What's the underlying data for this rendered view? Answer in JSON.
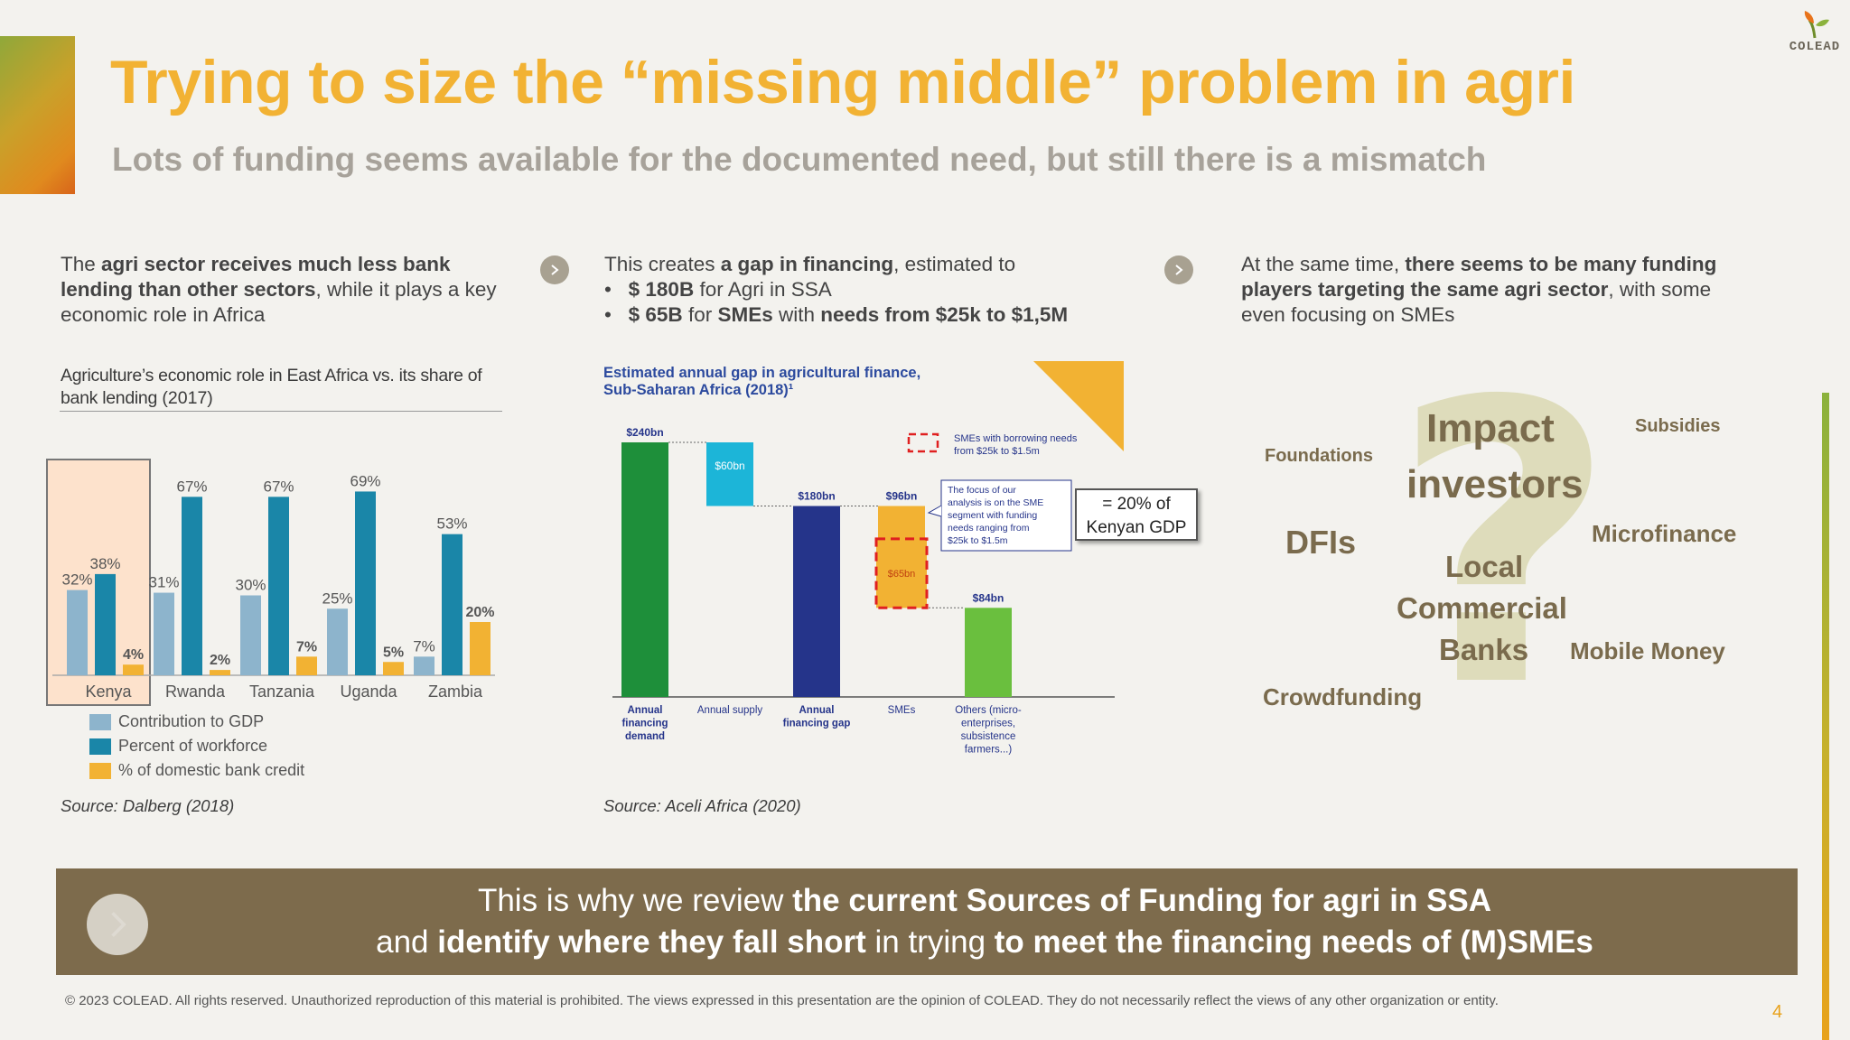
{
  "header": {
    "title": "Trying to size the “missing middle” problem in agri",
    "subtitle": "Lots of funding seems available for the documented need, but still there is a mismatch",
    "logo_text": "COLEAD",
    "accent_color": "#f2b233"
  },
  "columns": {
    "left": {
      "pre": "The ",
      "bold": "agri sector receives much less bank lending than other sectors",
      "post": ", while it plays a key economic role in Africa"
    },
    "middle": {
      "pre": "This creates ",
      "bold": "a gap in financing",
      "post": ", estimated to",
      "bullet1_bold": "$ 180B",
      "bullet1_rest": " for Agri in SSA",
      "bullet2_bold": "$ 65B",
      "bullet2_mid": " for ",
      "bullet2_bold2": "SMEs",
      "bullet2_rest": " with ",
      "bullet2_gold": "needs from $25k to $1,5M"
    },
    "right": {
      "pre": "At the same time, ",
      "bold": "there seems to be many funding players targeting the same agri sector",
      "post": ", with some even focusing on SMEs"
    }
  },
  "chart1": {
    "title_bold": "Agriculture’s economic role in East Africa vs. its share of bank lending",
    "title_year": " (2017)",
    "source": "Source: Dalberg (2018)",
    "highlight": "Kenya"
  },
  "chart2": {
    "title_line1": "Estimated annual gap in agricultural finance,",
    "title_line2": "Sub-Saharan Africa (2018)¹",
    "legend_text_1": "SMEs with borrowing needs",
    "legend_text_2": "from $25k to $1.5m",
    "callout": [
      "The focus of our",
      "analysis is on the SME",
      "segment with funding",
      "needs ranging from",
      "$25k to $1.5m"
    ],
    "gdp_box_line1": "= 20% of",
    "gdp_box_line2": "Kenyan GDP",
    "source": "Source: Aceli Africa (2020)"
  },
  "chart_data": [
    {
      "type": "bar",
      "title": "Agriculture’s economic role in East Africa vs. its share of bank lending (2017)",
      "categories": [
        "Kenya",
        "Rwanda",
        "Tanzania",
        "Uganda",
        "Zambia"
      ],
      "series": [
        {
          "name": "Contribution to GDP",
          "color": "#8db4cc",
          "values": [
            32,
            31,
            30,
            25,
            7
          ],
          "labels": [
            "32%",
            "31%",
            "30%",
            "25%",
            "7%"
          ]
        },
        {
          "name": "Percent of workforce",
          "color": "#1a86a8",
          "values": [
            38,
            67,
            67,
            69,
            53
          ],
          "labels": [
            "38%",
            "67%",
            "67%",
            "69%",
            "53%"
          ]
        },
        {
          "name": "% of domestic bank credit",
          "color": "#f2b233",
          "values": [
            4,
            2,
            7,
            5,
            20
          ],
          "labels": [
            "4%",
            "2%",
            "7%",
            "5%",
            "20%"
          ]
        }
      ],
      "ylim": [
        0,
        75
      ]
    },
    {
      "type": "bar",
      "title": "Estimated annual gap in agricultural finance, Sub-Saharan Africa (2018)¹",
      "categories": [
        "Annual financing demand",
        "Annual supply",
        "Annual financing gap",
        "SMEs",
        "Others (micro-enterprises, subsistence farmers...)"
      ],
      "category_lines": [
        [
          "Annual",
          "financing",
          "demand"
        ],
        [
          "Annual supply"
        ],
        [
          "Annual",
          "financing gap"
        ],
        [
          "SMEs"
        ],
        [
          "Others (micro-",
          "enterprises,",
          "subsistence",
          "farmers...)"
        ]
      ],
      "bars": [
        {
          "name": "Annual financing demand",
          "base": 0,
          "value": 240,
          "label": "$240bn",
          "color": "#1e8f3a"
        },
        {
          "name": "Annual supply",
          "base": 180,
          "value": 60,
          "label": "$60bn",
          "color": "#1cb5d8"
        },
        {
          "name": "Annual financing gap",
          "base": 0,
          "value": 180,
          "label": "$180bn",
          "color": "#25348a"
        },
        {
          "name": "SMEs",
          "base": 84,
          "value": 96,
          "label": "$96bn",
          "color": "#f2b233"
        },
        {
          "name": "Others",
          "base": 0,
          "value": 84,
          "label": "$84bn",
          "color": "#6abf3e"
        }
      ],
      "highlight": {
        "name": "SMEs with borrowing needs from $25k to $1.5m",
        "base": 84,
        "value": 65,
        "label": "$65bn"
      },
      "ylim": [
        0,
        240
      ]
    }
  ],
  "word_cloud": {
    "words": [
      {
        "text": "Impact",
        "size": 44
      },
      {
        "text": "investors",
        "size": 44
      },
      {
        "text": "Foundations",
        "size": 20
      },
      {
        "text": "Subsidies",
        "size": 20
      },
      {
        "text": "DFIs",
        "size": 36
      },
      {
        "text": "Microfinance",
        "size": 26
      },
      {
        "text": "Local",
        "size": 33
      },
      {
        "text": "Commercial",
        "size": 33
      },
      {
        "text": "Banks",
        "size": 33
      },
      {
        "text": "Mobile Money",
        "size": 26
      },
      {
        "text": "Crowdfunding",
        "size": 26
      }
    ],
    "question_mark": "?"
  },
  "banner": {
    "line1_pre": "This is why we review ",
    "line1_bold": "the current Sources of Funding for agri in SSA",
    "line2_pre": "and ",
    "line2_bold": "identify where they fall short",
    "line2_mid": " in trying ",
    "line2_bold2": "to meet the financing needs of (M)SMEs"
  },
  "footer": {
    "copyright": "© 2023 COLEAD. All rights reserved. Unauthorized reproduction of this material is prohibited. The views expressed in this presentation are the opinion of COLEAD. They do not necessarily reflect the views of any other organization or entity.",
    "page_number": "4"
  }
}
